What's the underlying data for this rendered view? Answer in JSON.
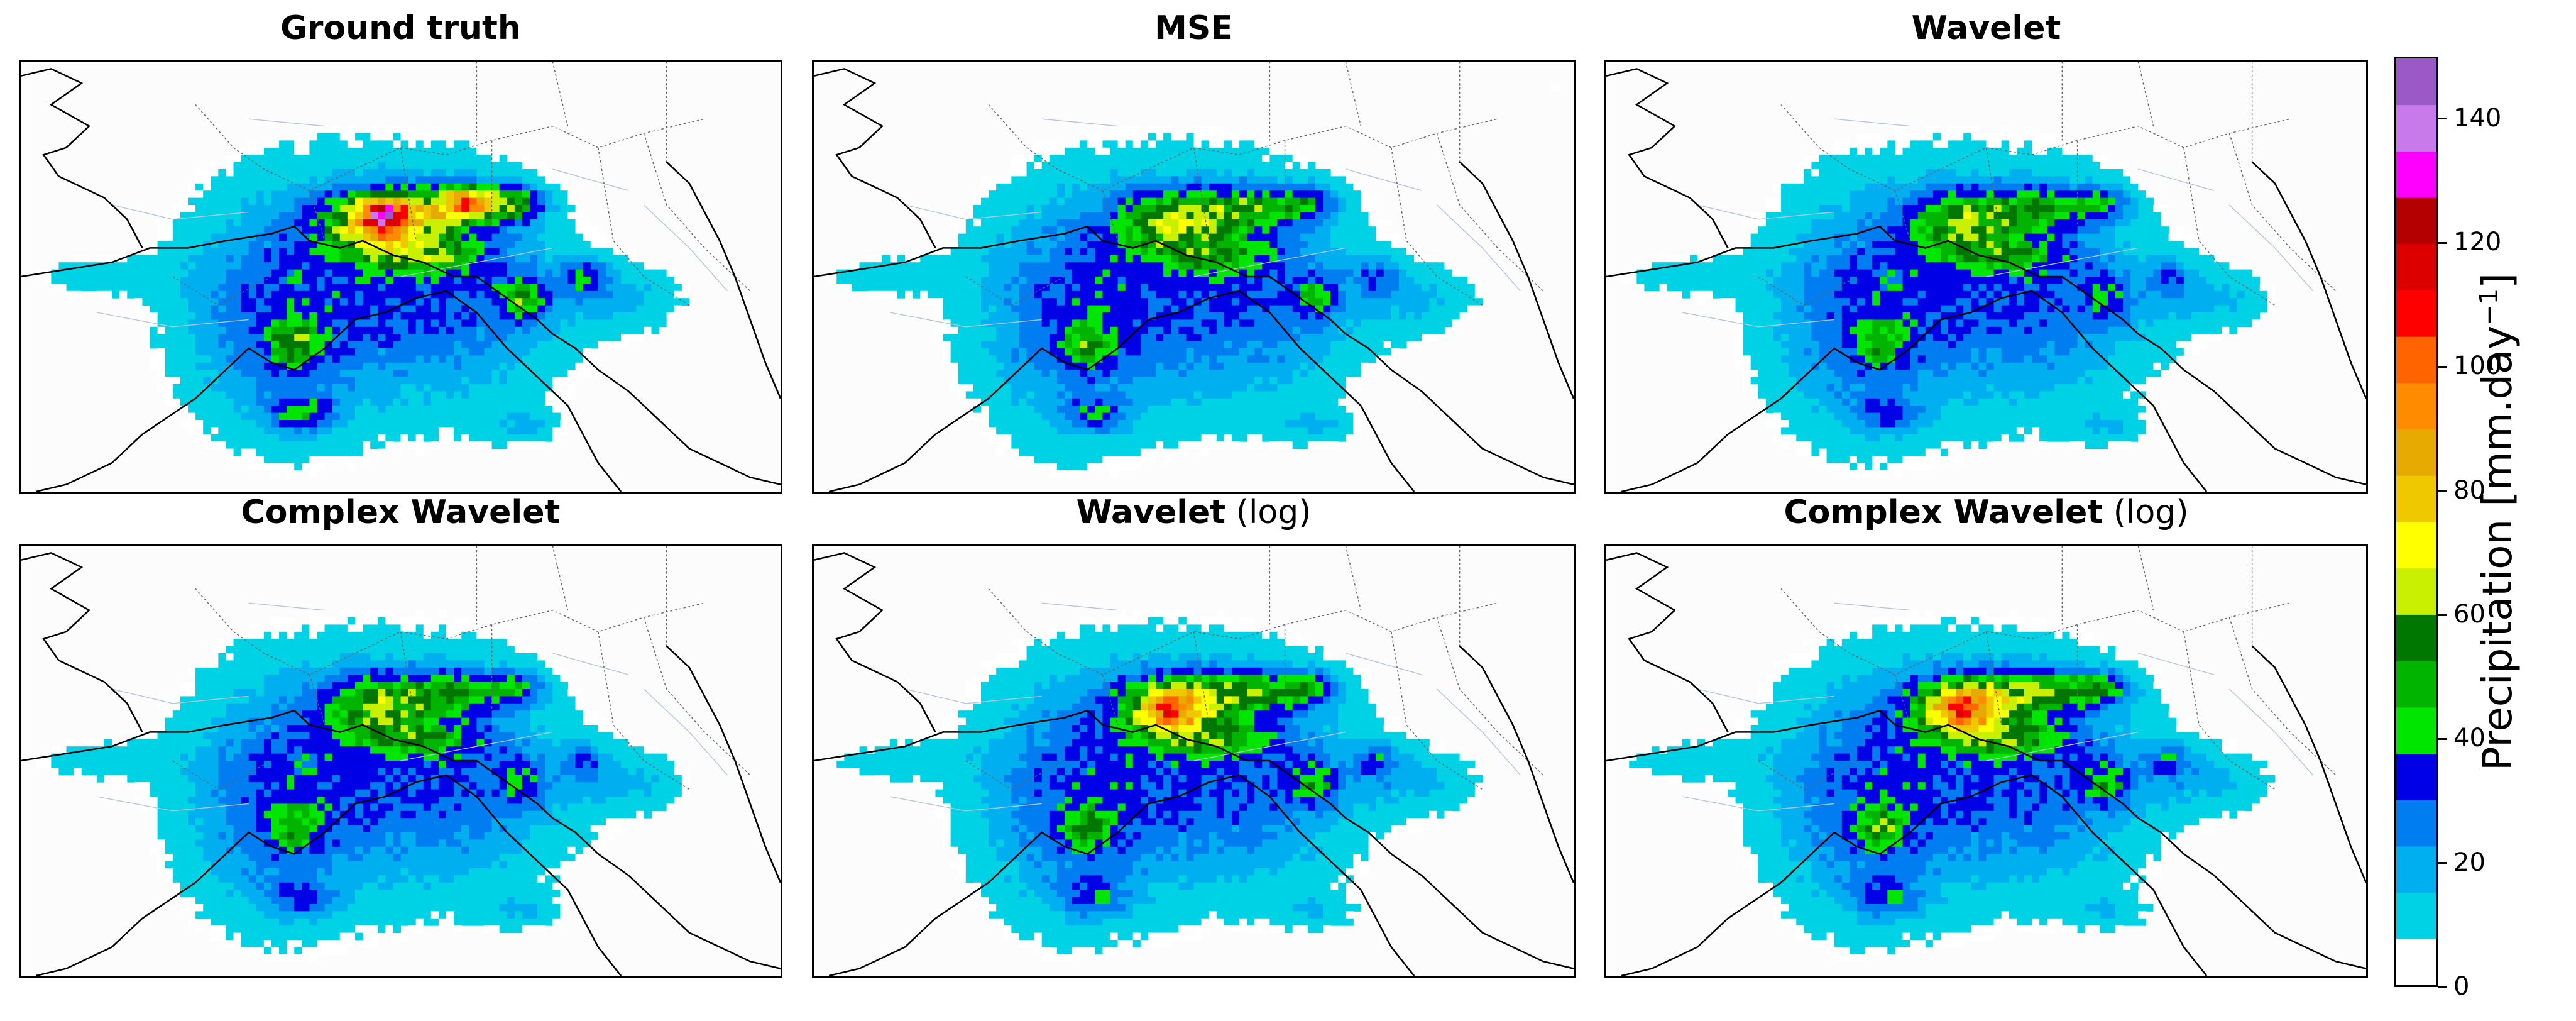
{
  "panels": [
    {
      "id": "ground-truth",
      "title_bold": "Ground truth",
      "title_suffix": "",
      "variant": "truth"
    },
    {
      "id": "mse",
      "title_bold": "MSE",
      "title_suffix": "",
      "variant": "mse"
    },
    {
      "id": "wavelet",
      "title_bold": "Wavelet",
      "title_suffix": "",
      "variant": "wavelet"
    },
    {
      "id": "complex-wavelet",
      "title_bold": "Complex Wavelet",
      "title_suffix": "",
      "variant": "complex"
    },
    {
      "id": "wavelet-log",
      "title_bold": "Wavelet",
      "title_suffix": " (log)",
      "variant": "wlog"
    },
    {
      "id": "complex-wavelet-log",
      "title_bold": "Complex Wavelet",
      "title_suffix": " (log)",
      "variant": "clog"
    }
  ],
  "colorbar": {
    "label_main": "Precipitation [mm.day",
    "label_sup": "−1",
    "label_end": "]",
    "min": 0,
    "max": 150,
    "step": 7.5,
    "ticks": [
      0,
      20,
      40,
      60,
      80,
      100,
      120,
      140
    ],
    "colors": [
      "#ffffff",
      "#00d2e6",
      "#00afef",
      "#007df0",
      "#0000e6",
      "#00e600",
      "#00b400",
      "#007800",
      "#c8f000",
      "#ffff00",
      "#f0c800",
      "#e6aa00",
      "#ff8c00",
      "#ff6400",
      "#ff0000",
      "#dc0000",
      "#b40000",
      "#ff00ff",
      "#c87aeb",
      "#9b59c8"
    ]
  }
}
